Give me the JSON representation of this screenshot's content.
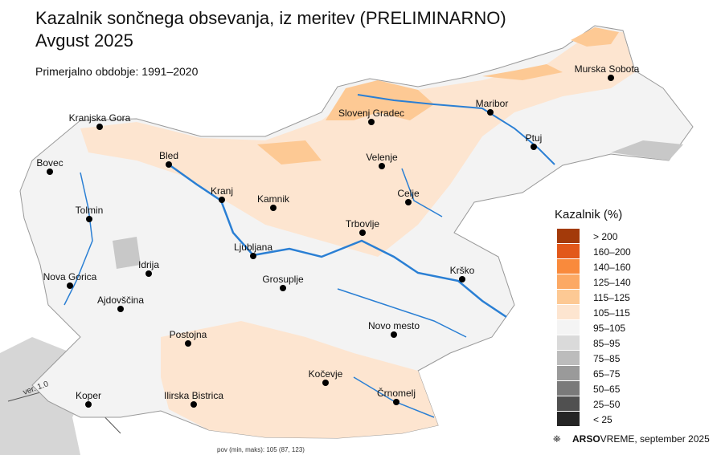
{
  "title": "Kazalnik sončnega obsevanja, iz meritev (PRELIMINARNO)",
  "period": "Avgust 2025",
  "subtitle": "Primerjalno obdobje: 1991–2020",
  "cities": [
    "Murska Sobota",
    "Slovenj Gradec",
    "Maribor",
    "Kranjska Gora",
    "Ptuj",
    "Bled",
    "Velenje",
    "Bovec",
    "Kranj",
    "Celje",
    "Kamnik",
    "Tolmin",
    "Trbovlje",
    "Ljubljana",
    "Idrija",
    "Nova Gorica",
    "Grosuplje",
    "Krško",
    "Ajdovščina",
    "Novo mesto",
    "Postojna",
    "Kočevje",
    "Koper",
    "Ilirska Bistrica",
    "Črnomelj"
  ],
  "legend": {
    "title": "Kazalnik (%)",
    "entries": [
      {
        "label": "> 200",
        "color": "#a33a0a"
      },
      {
        "label": "160–200",
        "color": "#e2581a"
      },
      {
        "label": "140–160",
        "color": "#f98a3c"
      },
      {
        "label": "125–140",
        "color": "#fca964"
      },
      {
        "label": "115–125",
        "color": "#fdc994"
      },
      {
        "label": "105–115",
        "color": "#fde5d0"
      },
      {
        "label": "95–105",
        "color": "#f4f4f4"
      },
      {
        "label": "85–95",
        "color": "#dadada"
      },
      {
        "label": "75–85",
        "color": "#bcbcbc"
      },
      {
        "label": "65–75",
        "color": "#9a9a9a"
      },
      {
        "label": "50–65",
        "color": "#7a7a7a"
      },
      {
        "label": "25–50",
        "color": "#505050"
      },
      {
        "label": "< 25",
        "color": "#252525"
      }
    ]
  },
  "version": "ver. 1.0",
  "stats": "pov (min, maks): 105 (87, 123)",
  "credit": {
    "brand": "ARSO",
    "section": "VREME",
    "date": ", september 2025"
  }
}
